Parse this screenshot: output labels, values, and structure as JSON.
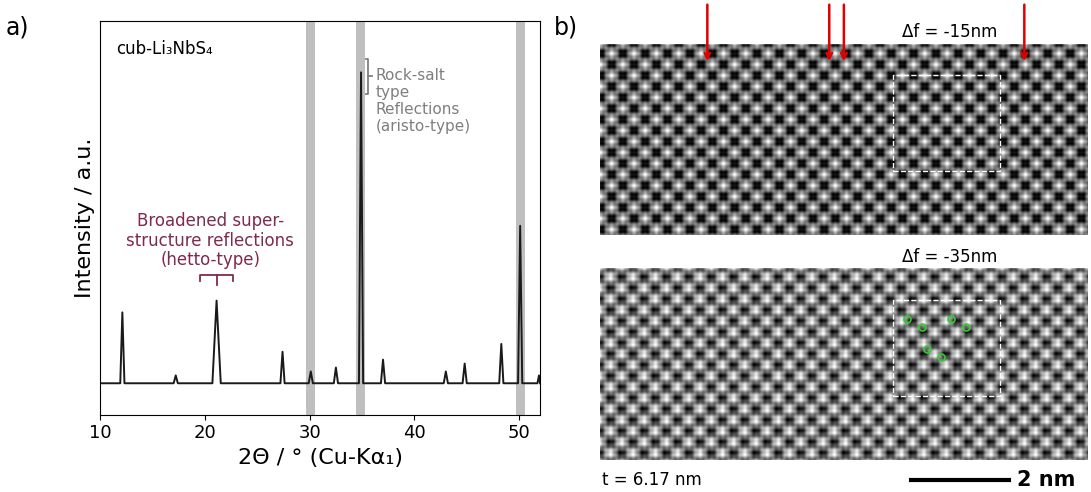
{
  "chart_data": {
    "type": "line",
    "panel_label": "a)",
    "xlabel": "2Θ / ° (Cu-Kα₁)",
    "ylabel": "Intensity / a.u.",
    "sample_label": "cub-Li₃NbS₄",
    "annotations": [
      {
        "text": "Broadened super-\nstructure reflections\n(hetto-type)",
        "x": 21.1,
        "color": "#7f2a4f"
      },
      {
        "text": "Rock-salt\ntype\nReflections\n(aristo-type)",
        "x": 34.9,
        "color": "#7f7f7f"
      }
    ],
    "highlight_ranges": [
      [
        29.6,
        30.5
      ],
      [
        34.4,
        35.3
      ],
      [
        49.7,
        50.6
      ]
    ],
    "series": [
      {
        "name": "cub-Li₃NbS₄",
        "color": "#1a1a1a",
        "x": [
          10,
          11.9,
          12.1,
          12.3,
          17.0,
          17.2,
          17.4,
          20.7,
          21.1,
          21.5,
          27.2,
          27.4,
          27.6,
          29.9,
          30.1,
          30.3,
          32.3,
          32.5,
          32.7,
          34.7,
          34.9,
          35.1,
          36.8,
          37.0,
          37.2,
          42.8,
          43.0,
          43.2,
          44.6,
          44.8,
          45.0,
          48.1,
          48.3,
          48.5,
          49.9,
          50.1,
          50.3,
          51.75,
          51.9,
          52.0
        ],
        "values": [
          0.08,
          0.08,
          0.26,
          0.08,
          0.08,
          0.1,
          0.08,
          0.08,
          0.29,
          0.08,
          0.08,
          0.16,
          0.08,
          0.08,
          0.11,
          0.08,
          0.08,
          0.12,
          0.08,
          0.08,
          0.87,
          0.08,
          0.08,
          0.14,
          0.08,
          0.08,
          0.11,
          0.08,
          0.08,
          0.13,
          0.08,
          0.08,
          0.18,
          0.08,
          0.08,
          0.48,
          0.08,
          0.08,
          0.1,
          0.08
        ]
      }
    ],
    "xlim": [
      10,
      52
    ],
    "xticks": [
      10,
      20,
      30,
      40,
      50
    ],
    "ylim": [
      0,
      1
    ],
    "yticks": [],
    "tick_labels": "x",
    "grid": false
  },
  "panel_b": {
    "label": "b)",
    "images": [
      {
        "defocus": "Δf = -15nm"
      },
      {
        "defocus": "Δf = -35nm"
      }
    ],
    "thickness": "t = 6.17 nm",
    "scale_bar": "2 nm"
  }
}
